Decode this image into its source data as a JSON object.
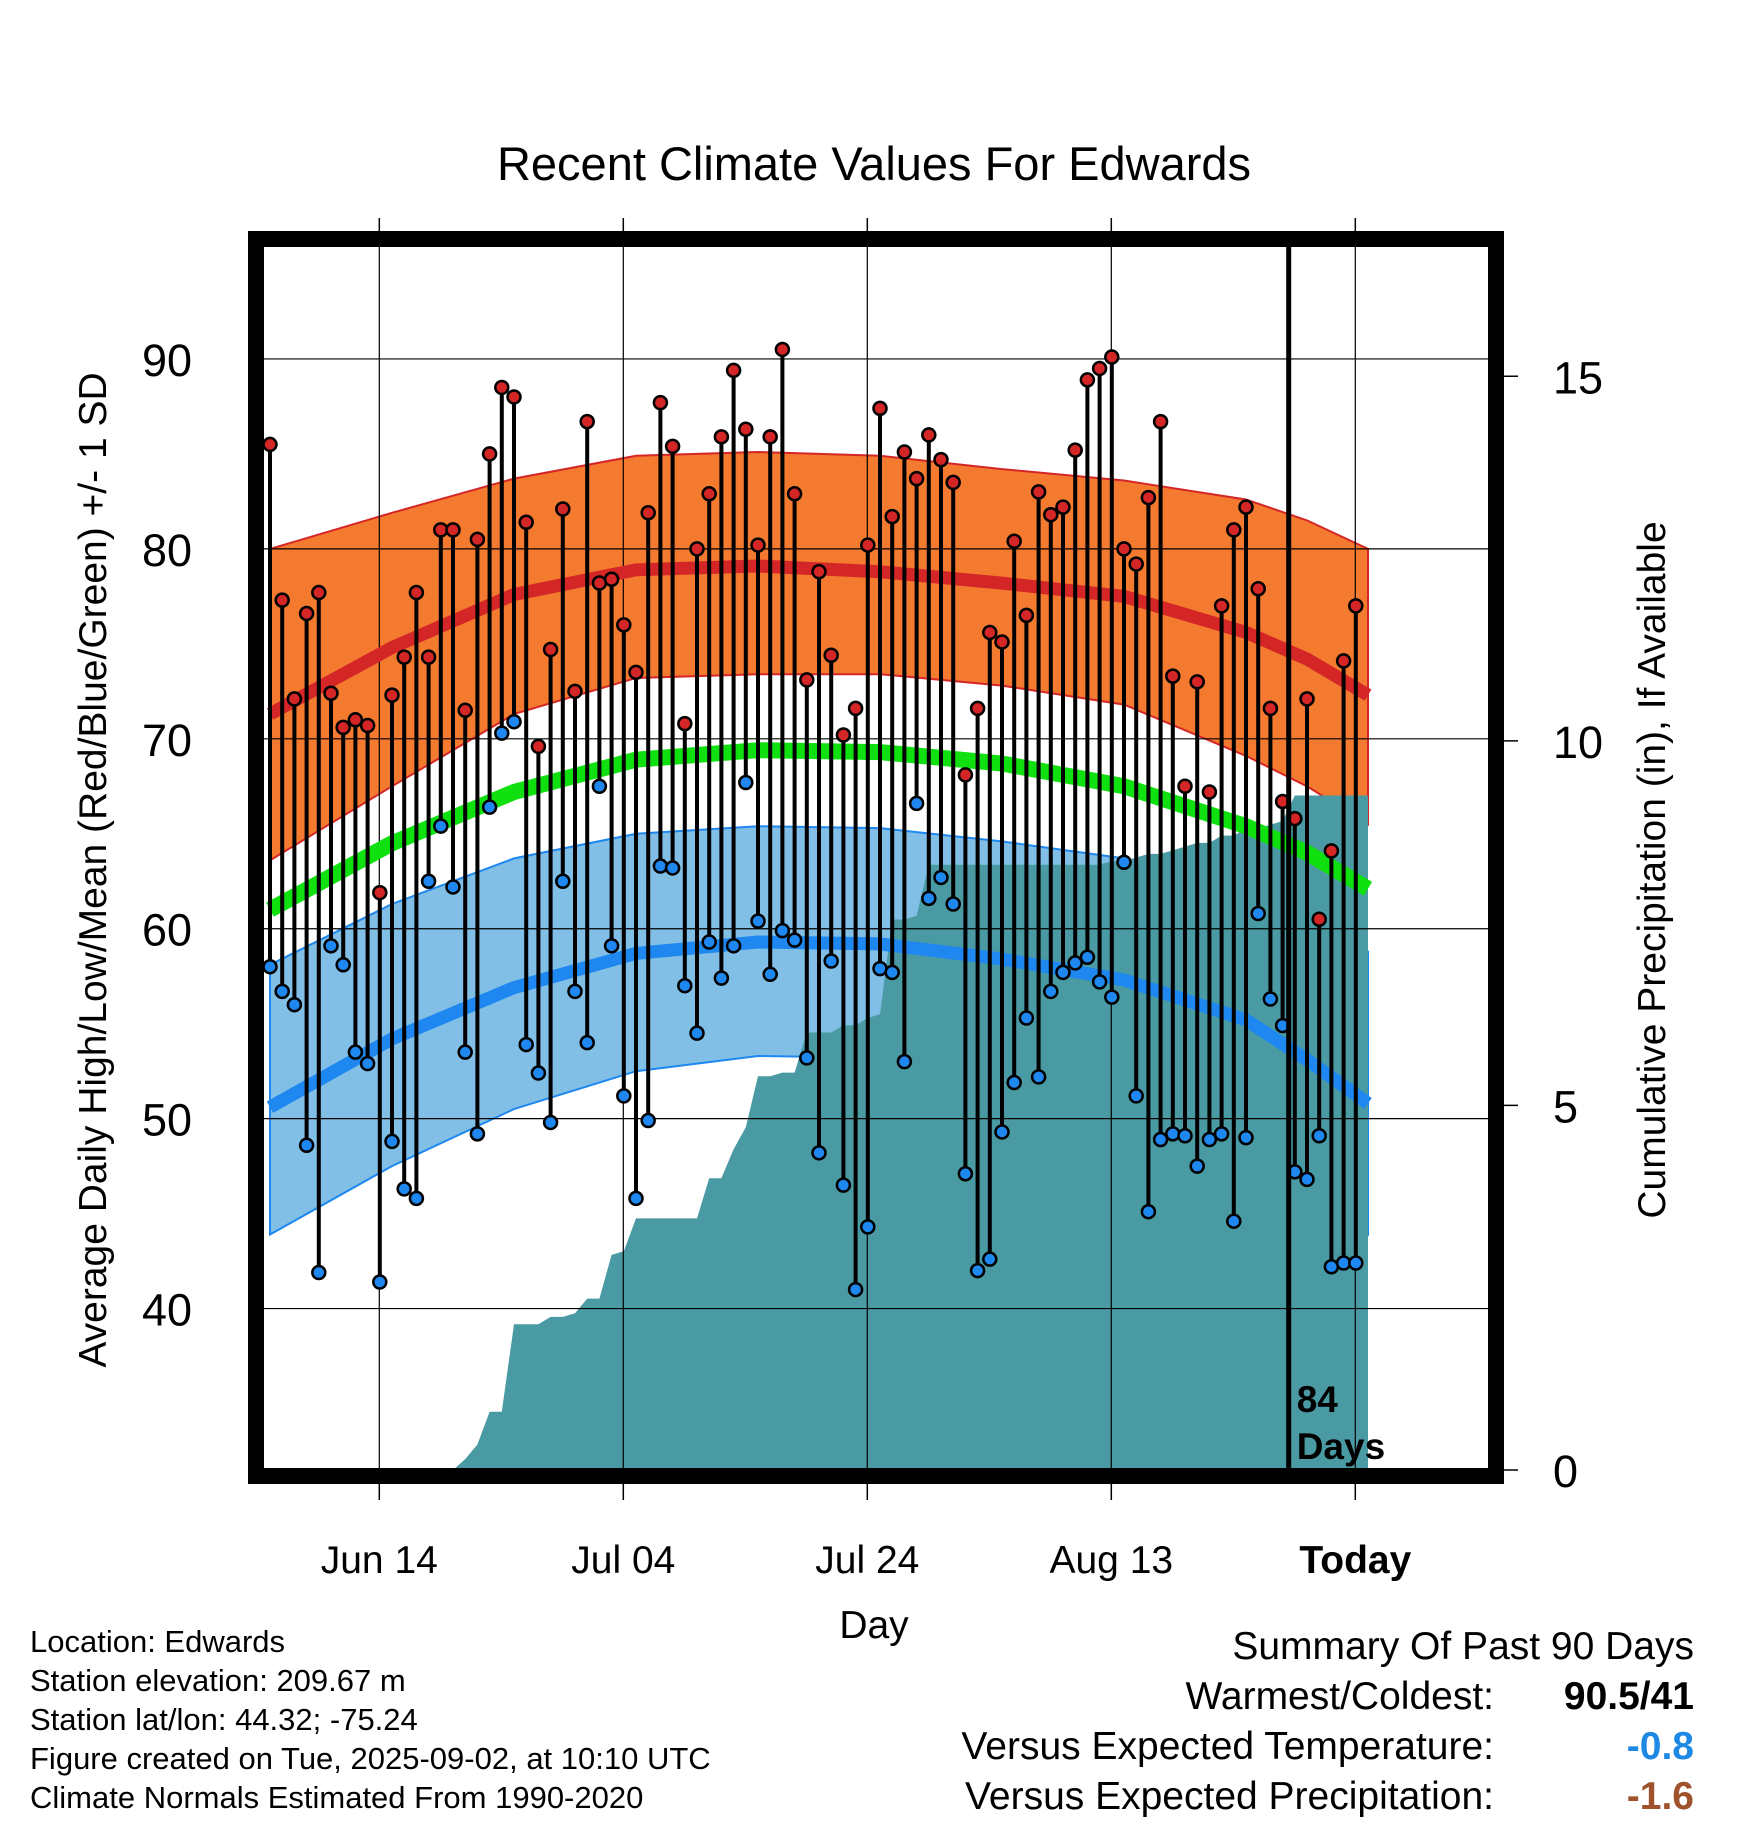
{
  "colors": {
    "high_band": "#f47a30",
    "high_line": "#d42626",
    "mean_line": "#10e010",
    "low_band": "#82bfe6",
    "low_line": "#1e88f0",
    "precip_fill": "#4a9aa4",
    "negative_temp": "#1e88e5",
    "negative_precip": "#a0522d"
  },
  "chart_data": {
    "type": "scatter",
    "title": "Recent Climate Values For Edwards",
    "xlabel": "Day",
    "ylabel": "Average Daily High/Low/Mean (Red/Blue/Green) +/- 1 SD",
    "ylabel_right": "Cumulative Precipitation (in), If Available",
    "x_ticks": [
      "Jun 14",
      "Jul 04",
      "Jul 24",
      "Aug 13",
      "Today"
    ],
    "y_ticks": [
      "40",
      "50",
      "60",
      "70",
      "80",
      "90"
    ],
    "y2_ticks": [
      "0",
      "5",
      "10",
      "15"
    ],
    "ylim": [
      31.5,
      96
    ],
    "y2lim": [
      0,
      16.8
    ],
    "xlim": [
      -11.5,
      90.5
    ],
    "today_day": 83.5,
    "today_label": "84\nDays",
    "normals": {
      "x": [
        0,
        10,
        20,
        30,
        40,
        50,
        60,
        70,
        80,
        85,
        90
      ],
      "high_mean": [
        71.3,
        74.8,
        77.6,
        78.9,
        79.1,
        78.8,
        78.2,
        77.5,
        75.6,
        74.2,
        72.3
      ],
      "high_plus_sd": [
        80.0,
        81.9,
        83.7,
        84.9,
        85.1,
        84.9,
        84.2,
        83.6,
        82.6,
        81.5,
        80.0
      ],
      "high_minus_sd": [
        63.6,
        67.5,
        71.3,
        73.2,
        73.4,
        73.4,
        72.8,
        71.8,
        69.1,
        67.5,
        65.5
      ],
      "mean": [
        61.0,
        64.5,
        67.2,
        68.9,
        69.4,
        69.3,
        68.7,
        67.5,
        65.4,
        64.0,
        62.1
      ],
      "low_mean": [
        50.6,
        54.2,
        56.9,
        58.7,
        59.3,
        59.2,
        58.4,
        57.3,
        55.2,
        53.1,
        50.8
      ],
      "low_plus_sd": [
        58.1,
        61.3,
        63.7,
        65.0,
        65.4,
        65.3,
        64.6,
        63.7,
        61.9,
        60.7,
        58.8
      ],
      "low_minus_sd": [
        43.9,
        47.5,
        50.5,
        52.5,
        53.3,
        53.2,
        52.4,
        50.8,
        48.3,
        46.3,
        43.9
      ]
    },
    "daily": [
      {
        "day": 0,
        "high": 85.5,
        "low": 58.0
      },
      {
        "day": 1,
        "high": 77.3,
        "low": 56.7
      },
      {
        "day": 2,
        "high": 72.1,
        "low": 56.0
      },
      {
        "day": 3,
        "high": 76.6,
        "low": 48.6
      },
      {
        "day": 4,
        "high": 77.7,
        "low": 41.9
      },
      {
        "day": 5,
        "high": 72.4,
        "low": 59.1
      },
      {
        "day": 6,
        "high": 70.6,
        "low": 58.1
      },
      {
        "day": 7,
        "high": 71.0,
        "low": 53.5
      },
      {
        "day": 8,
        "high": 70.7,
        "low": 52.9
      },
      {
        "day": 9,
        "high": 61.9,
        "low": 41.4
      },
      {
        "day": 10,
        "high": 72.3,
        "low": 48.8
      },
      {
        "day": 11,
        "high": 74.3,
        "low": 46.3
      },
      {
        "day": 12,
        "high": 77.7,
        "low": 45.8
      },
      {
        "day": 13,
        "high": 74.3,
        "low": 62.5
      },
      {
        "day": 14,
        "high": 81.0,
        "low": 65.4
      },
      {
        "day": 15,
        "high": 81.0,
        "low": 62.2
      },
      {
        "day": 16,
        "high": 71.5,
        "low": 53.5
      },
      {
        "day": 17,
        "high": 80.5,
        "low": 49.2
      },
      {
        "day": 18,
        "high": 85.0,
        "low": 66.4
      },
      {
        "day": 19,
        "high": 88.5,
        "low": 70.3
      },
      {
        "day": 20,
        "high": 88.0,
        "low": 70.9
      },
      {
        "day": 21,
        "high": 81.4,
        "low": 53.9
      },
      {
        "day": 22,
        "high": 69.6,
        "low": 52.4
      },
      {
        "day": 23,
        "high": 74.7,
        "low": 49.8
      },
      {
        "day": 24,
        "high": 82.1,
        "low": 62.5
      },
      {
        "day": 25,
        "high": 72.5,
        "low": 56.7
      },
      {
        "day": 26,
        "high": 86.7,
        "low": 54.0
      },
      {
        "day": 27,
        "high": 78.2,
        "low": 67.5
      },
      {
        "day": 28,
        "high": 78.4,
        "low": 59.1
      },
      {
        "day": 29,
        "high": 76.0,
        "low": 51.2
      },
      {
        "day": 30,
        "high": 73.5,
        "low": 45.8
      },
      {
        "day": 31,
        "high": 81.9,
        "low": 49.9
      },
      {
        "day": 32,
        "high": 87.7,
        "low": 63.3
      },
      {
        "day": 33,
        "high": 85.4,
        "low": 63.2
      },
      {
        "day": 34,
        "high": 70.8,
        "low": 57.0
      },
      {
        "day": 35,
        "high": 80.0,
        "low": 54.5
      },
      {
        "day": 36,
        "high": 82.9,
        "low": 59.3
      },
      {
        "day": 37,
        "high": 85.9,
        "low": 57.4
      },
      {
        "day": 38,
        "high": 89.4,
        "low": 59.1
      },
      {
        "day": 39,
        "high": 86.3,
        "low": 67.7
      },
      {
        "day": 40,
        "high": 80.2,
        "low": 60.4
      },
      {
        "day": 41,
        "high": 85.9,
        "low": 57.6
      },
      {
        "day": 42,
        "high": 90.5,
        "low": 59.9
      },
      {
        "day": 43,
        "high": 82.9,
        "low": 59.4
      },
      {
        "day": 44,
        "high": 73.1,
        "low": 53.2
      },
      {
        "day": 45,
        "high": 78.8,
        "low": 48.2
      },
      {
        "day": 46,
        "high": 74.4,
        "low": 58.3
      },
      {
        "day": 47,
        "high": 70.2,
        "low": 46.5
      },
      {
        "day": 48,
        "high": 71.6,
        "low": 41.0
      },
      {
        "day": 49,
        "high": 80.2,
        "low": 44.3
      },
      {
        "day": 50,
        "high": 87.4,
        "low": 57.9
      },
      {
        "day": 51,
        "high": 81.7,
        "low": 57.7
      },
      {
        "day": 52,
        "high": 85.1,
        "low": 53.0
      },
      {
        "day": 53,
        "high": 83.7,
        "low": 66.6
      },
      {
        "day": 54,
        "high": 86.0,
        "low": 61.6
      },
      {
        "day": 55,
        "high": 84.7,
        "low": 62.7
      },
      {
        "day": 56,
        "high": 83.5,
        "low": 61.3
      },
      {
        "day": 57,
        "high": 68.1,
        "low": 47.1
      },
      {
        "day": 58,
        "high": 71.6,
        "low": 42.0
      },
      {
        "day": 59,
        "high": 75.6,
        "low": 42.6
      },
      {
        "day": 60,
        "high": 75.1,
        "low": 49.3
      },
      {
        "day": 61,
        "high": 80.4,
        "low": 51.9
      },
      {
        "day": 62,
        "high": 76.5,
        "low": 55.3
      },
      {
        "day": 63,
        "high": 83.0,
        "low": 52.2
      },
      {
        "day": 64,
        "high": 81.8,
        "low": 56.7
      },
      {
        "day": 65,
        "high": 82.2,
        "low": 57.7
      },
      {
        "day": 66,
        "high": 85.2,
        "low": 58.2
      },
      {
        "day": 67,
        "high": 88.9,
        "low": 58.5
      },
      {
        "day": 68,
        "high": 89.5,
        "low": 57.2
      },
      {
        "day": 69,
        "high": 90.1,
        "low": 56.4
      },
      {
        "day": 70,
        "high": 80.0,
        "low": 63.5
      },
      {
        "day": 71,
        "high": 79.2,
        "low": 51.2
      },
      {
        "day": 72,
        "high": 82.7,
        "low": 45.1
      },
      {
        "day": 73,
        "high": 86.7,
        "low": 48.9
      },
      {
        "day": 74,
        "high": 73.3,
        "low": 49.2
      },
      {
        "day": 75,
        "high": 67.5,
        "low": 49.1
      },
      {
        "day": 76,
        "high": 73.0,
        "low": 47.5
      },
      {
        "day": 77,
        "high": 67.2,
        "low": 48.9
      },
      {
        "day": 78,
        "high": 77.0,
        "low": 49.2
      },
      {
        "day": 79,
        "high": 81.0,
        "low": 44.6
      },
      {
        "day": 80,
        "high": 82.2,
        "low": 49.0
      },
      {
        "day": 81,
        "high": 77.9,
        "low": 60.8
      },
      {
        "day": 82,
        "high": 71.6,
        "low": 56.3
      },
      {
        "day": 83,
        "high": 66.7,
        "low": 54.9
      },
      {
        "day": 84,
        "high": 65.8,
        "low": 47.2
      },
      {
        "day": 85,
        "high": 72.1,
        "low": 46.8
      },
      {
        "day": 86,
        "high": 60.5,
        "low": 49.1
      },
      {
        "day": 87,
        "high": 64.1,
        "low": 42.2
      },
      {
        "day": 88,
        "high": 74.1,
        "low": 42.4
      },
      {
        "day": 89,
        "high": 77.0,
        "low": 42.4
      }
    ],
    "precip": {
      "x": [
        0,
        15,
        16,
        17,
        18,
        19,
        20,
        21,
        22,
        23,
        24,
        25,
        26,
        27,
        28,
        29,
        30,
        35,
        36,
        37,
        38,
        39,
        40,
        41,
        42,
        43,
        44,
        45,
        46,
        47,
        48,
        49,
        50,
        51,
        52,
        53,
        54,
        55,
        68,
        69,
        70,
        71,
        72,
        73,
        74,
        75,
        76,
        77,
        78,
        79,
        80,
        81,
        82,
        83,
        84,
        85,
        86,
        87,
        88,
        89,
        90
      ],
      "y": [
        0,
        0,
        0.15,
        0.35,
        0.8,
        0.8,
        2.0,
        2.0,
        2.0,
        2.1,
        2.1,
        2.15,
        2.35,
        2.35,
        2.95,
        3.0,
        3.45,
        3.45,
        4.0,
        4.0,
        4.4,
        4.7,
        5.4,
        5.4,
        5.45,
        5.45,
        6.0,
        6.0,
        6.0,
        6.1,
        6.1,
        6.2,
        6.25,
        7.55,
        7.55,
        7.6,
        8.3,
        8.3,
        8.3,
        8.35,
        8.35,
        8.4,
        8.45,
        8.45,
        8.5,
        8.55,
        8.6,
        8.6,
        8.7,
        8.7,
        8.8,
        8.8,
        8.85,
        8.9,
        9.25,
        9.25,
        9.25,
        9.25,
        9.25,
        9.25,
        9.25
      ]
    },
    "grid": true
  },
  "footer": {
    "location": "Location: Edwards",
    "elevation": "Station elevation: 209.67 m",
    "latlon": "Station lat/lon: 44.32; -75.24",
    "created": "Figure created on Tue, 2025-09-02, at 10:10 UTC",
    "normals": "Climate Normals Estimated From 1990-2020"
  },
  "summary": {
    "title": "Summary Of Past 90 Days",
    "warmest_label": "Warmest/Coldest:",
    "warmest_value": "90.5/41",
    "temp_label": "Versus Expected Temperature:",
    "temp_value": "-0.8",
    "precip_label": "Versus Expected Precipitation:",
    "precip_value": "-1.6"
  }
}
